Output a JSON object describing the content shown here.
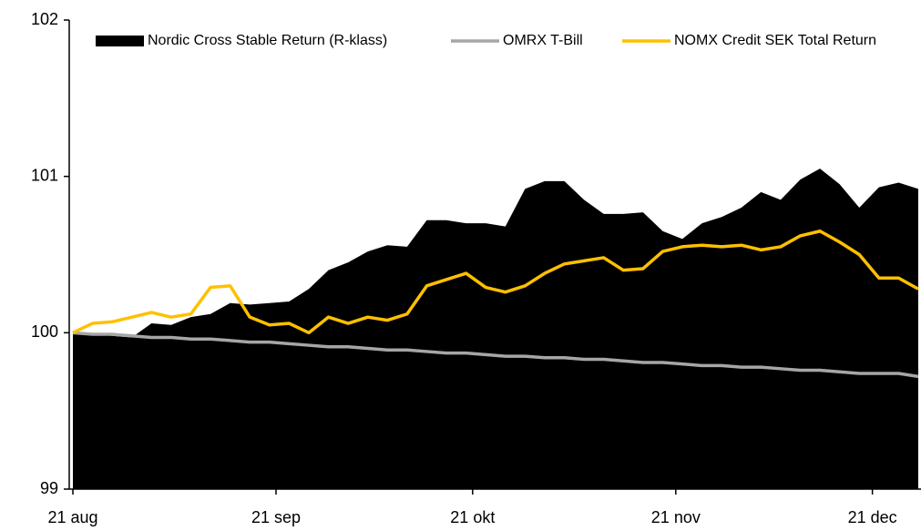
{
  "chart_data": {
    "type": "line",
    "x": [
      0,
      3,
      6,
      9,
      12,
      15,
      18,
      21,
      24,
      27,
      30,
      33,
      36,
      39,
      42,
      45,
      48,
      51,
      54,
      57,
      60,
      63,
      66,
      69,
      72,
      75,
      78,
      81,
      84,
      87,
      90,
      93,
      96,
      99,
      102,
      105,
      108,
      111,
      114,
      117,
      120,
      123,
      126,
      129
    ],
    "xlim": [
      0,
      129
    ],
    "xticks": [
      {
        "value": 0,
        "label": "21 aug"
      },
      {
        "value": 31,
        "label": "21 sep"
      },
      {
        "value": 61,
        "label": "21 okt"
      },
      {
        "value": 92,
        "label": "21 nov"
      },
      {
        "value": 122,
        "label": "21 dec"
      }
    ],
    "ylim": [
      99,
      102
    ],
    "yticks": [
      99,
      100,
      101,
      102
    ],
    "grid": false,
    "legend": "top",
    "series": [
      {
        "name": "Nordic Cross Stable Return (R-klass)",
        "color": "#000000",
        "fill": true,
        "values": [
          100,
          99.99,
          99.98,
          99.97,
          100.06,
          100.05,
          100.1,
          100.12,
          100.19,
          100.18,
          100.19,
          100.2,
          100.28,
          100.4,
          100.45,
          100.52,
          100.56,
          100.55,
          100.72,
          100.72,
          100.7,
          100.7,
          100.68,
          100.92,
          100.97,
          100.97,
          100.85,
          100.76,
          100.76,
          100.77,
          100.65,
          100.6,
          100.7,
          100.74,
          100.8,
          100.9,
          100.85,
          100.98,
          101.05,
          100.95,
          100.8,
          100.93,
          100.96,
          100.92
        ]
      },
      {
        "name": "OMRX T-Bill",
        "color": "#a6a6a6",
        "values": [
          100,
          99.99,
          99.99,
          99.98,
          99.97,
          99.97,
          99.96,
          99.96,
          99.95,
          99.94,
          99.94,
          99.93,
          99.92,
          99.91,
          99.91,
          99.9,
          99.89,
          99.89,
          99.88,
          99.87,
          99.87,
          99.86,
          99.85,
          99.85,
          99.84,
          99.84,
          99.83,
          99.83,
          99.82,
          99.81,
          99.81,
          99.8,
          99.79,
          99.79,
          99.78,
          99.78,
          99.77,
          99.76,
          99.76,
          99.75,
          99.74,
          99.74,
          99.74,
          99.72
        ]
      },
      {
        "name": "NOMX Credit SEK Total Return",
        "color": "#ffc000",
        "values": [
          100,
          100.06,
          100.07,
          100.1,
          100.13,
          100.1,
          100.12,
          100.29,
          100.3,
          100.1,
          100.05,
          100.06,
          100.0,
          100.1,
          100.06,
          100.1,
          100.08,
          100.12,
          100.3,
          100.34,
          100.38,
          100.29,
          100.26,
          100.3,
          100.38,
          100.44,
          100.46,
          100.48,
          100.4,
          100.41,
          100.52,
          100.55,
          100.56,
          100.55,
          100.56,
          100.53,
          100.55,
          100.62,
          100.65,
          100.58,
          100.5,
          100.35,
          100.35,
          100.28
        ]
      }
    ]
  }
}
